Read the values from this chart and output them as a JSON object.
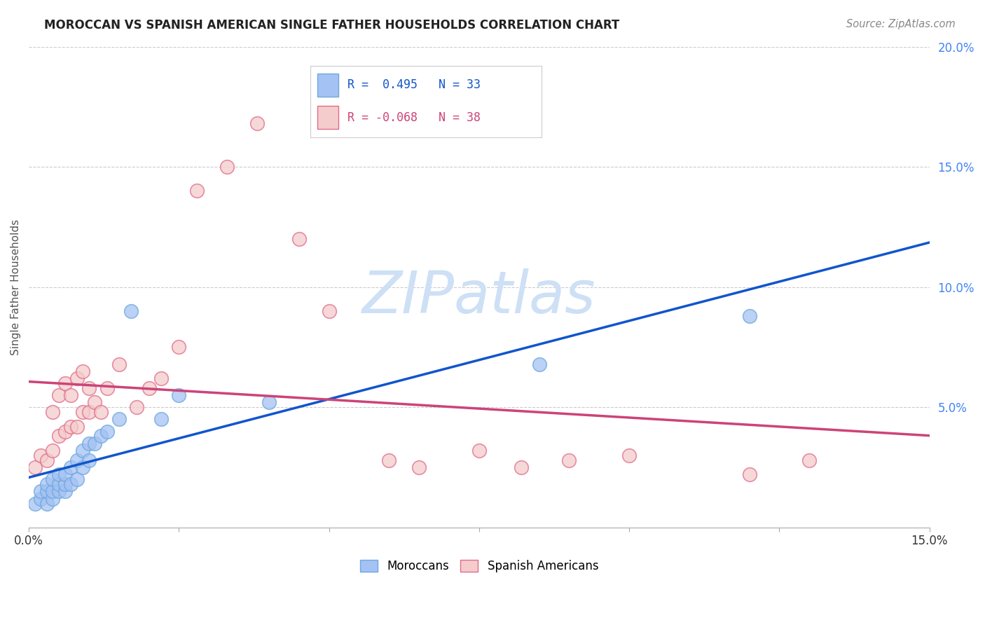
{
  "title": "MOROCCAN VS SPANISH AMERICAN SINGLE FATHER HOUSEHOLDS CORRELATION CHART",
  "source": "Source: ZipAtlas.com",
  "ylabel": "Single Father Households",
  "xlim": [
    0.0,
    0.15
  ],
  "ylim": [
    0.0,
    0.2
  ],
  "legend_moroccan_R": "0.495",
  "legend_moroccan_N": "33",
  "legend_spanish_R": "-0.068",
  "legend_spanish_N": "38",
  "moroccan_color": "#a4c2f4",
  "moroccan_edge_color": "#6fa8dc",
  "spanish_color": "#f4cccc",
  "spanish_edge_color": "#e06c8a",
  "moroccan_line_color": "#1155cc",
  "spanish_line_color": "#cc4477",
  "watermark": "ZIPatlas",
  "watermark_color": "#ddeeff",
  "background_color": "#ffffff",
  "moroccan_x": [
    0.001,
    0.002,
    0.002,
    0.003,
    0.003,
    0.003,
    0.004,
    0.004,
    0.004,
    0.005,
    0.005,
    0.005,
    0.006,
    0.006,
    0.006,
    0.007,
    0.007,
    0.008,
    0.008,
    0.009,
    0.009,
    0.01,
    0.01,
    0.011,
    0.012,
    0.013,
    0.015,
    0.017,
    0.022,
    0.025,
    0.04,
    0.085,
    0.12
  ],
  "moroccan_y": [
    0.01,
    0.012,
    0.015,
    0.01,
    0.015,
    0.018,
    0.012,
    0.015,
    0.02,
    0.015,
    0.018,
    0.022,
    0.015,
    0.018,
    0.022,
    0.018,
    0.025,
    0.02,
    0.028,
    0.025,
    0.032,
    0.028,
    0.035,
    0.035,
    0.038,
    0.04,
    0.045,
    0.09,
    0.045,
    0.055,
    0.052,
    0.068,
    0.088
  ],
  "spanish_x": [
    0.001,
    0.002,
    0.003,
    0.004,
    0.004,
    0.005,
    0.005,
    0.006,
    0.006,
    0.007,
    0.007,
    0.008,
    0.008,
    0.009,
    0.009,
    0.01,
    0.01,
    0.011,
    0.012,
    0.013,
    0.015,
    0.018,
    0.02,
    0.022,
    0.025,
    0.028,
    0.033,
    0.038,
    0.045,
    0.05,
    0.06,
    0.065,
    0.075,
    0.082,
    0.09,
    0.1,
    0.12,
    0.13
  ],
  "spanish_y": [
    0.025,
    0.03,
    0.028,
    0.032,
    0.048,
    0.038,
    0.055,
    0.04,
    0.06,
    0.042,
    0.055,
    0.042,
    0.062,
    0.048,
    0.065,
    0.048,
    0.058,
    0.052,
    0.048,
    0.058,
    0.068,
    0.05,
    0.058,
    0.062,
    0.075,
    0.14,
    0.15,
    0.168,
    0.12,
    0.09,
    0.028,
    0.025,
    0.032,
    0.025,
    0.028,
    0.03,
    0.022,
    0.028
  ]
}
